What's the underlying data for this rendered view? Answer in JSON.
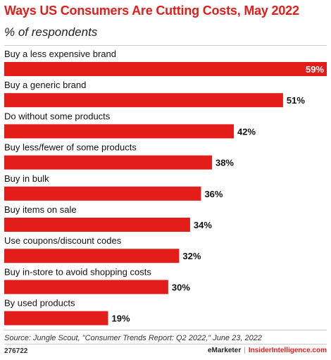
{
  "chart_data": {
    "type": "bar",
    "orientation": "horizontal",
    "title": "Ways US Consumers Are Cutting Costs, May 2022",
    "subtitle": "% of respondents",
    "categories": [
      "Buy a less expensive brand",
      "Buy a generic brand",
      "Do without some products",
      "Buy less/fewer of some products",
      "Buy in bulk",
      "Buy items on sale",
      "Use coupons/discount codes",
      "Buy in-store to avoid shopping costs",
      "By used products"
    ],
    "values": [
      59,
      51,
      42,
      38,
      36,
      34,
      32,
      30,
      19
    ],
    "value_labels": [
      "59%",
      "51%",
      "42%",
      "38%",
      "36%",
      "34%",
      "32%",
      "30%",
      "19%"
    ],
    "unit": "%",
    "xlim": [
      0,
      59
    ],
    "grid": false,
    "legend": "none",
    "bar_color": "#e31d1a"
  },
  "footer": {
    "source": "Source: Jungle Scout, \"Consumer Trends Report: Q2 2022,\" June 23, 2022",
    "chart_id": "276722",
    "brand_emarketer": "eMarketer",
    "brand_separator": "|",
    "brand_insider": "InsiderIntelligence.com"
  },
  "colors": {
    "accent": "#e31d1a",
    "text": "#111111",
    "divider": "#cccccc"
  }
}
